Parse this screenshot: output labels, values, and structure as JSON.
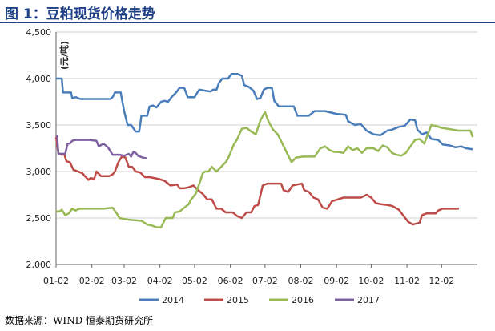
{
  "header": {
    "title": "图 1：豆粕现货价格走势"
  },
  "footer": {
    "source": "数据来源：WIND 恒泰期货研究所"
  },
  "colors": {
    "title": "#1f3f86",
    "gridline": "#d0d0d0",
    "s2014": "#4a7ebb",
    "s2015": "#be4b48",
    "s2016": "#98b954",
    "s2017": "#7d60a0"
  },
  "chart_data": {
    "type": "line",
    "title": "",
    "xlabel": "",
    "ylabel": "(元/吨)",
    "xlim": [
      1,
      366
    ],
    "ylim": [
      2000,
      4500
    ],
    "yticks": [
      2000,
      2500,
      3000,
      3500,
      4000,
      4500
    ],
    "ytick_labels": [
      "2,000",
      "2,500",
      "3,000",
      "3,500",
      "4,000",
      "4,500"
    ],
    "xticks": [
      1,
      32,
      60,
      91,
      121,
      152,
      182,
      213,
      244,
      274,
      305,
      335
    ],
    "xtick_labels": [
      "01-02",
      "02-02",
      "03-02",
      "04-02",
      "05-02",
      "06-02",
      "07-02",
      "08-02",
      "09-02",
      "10-02",
      "11-02",
      "12-02"
    ],
    "grid": "horizontal",
    "legend_position": "bottom",
    "series": [
      {
        "name": "2014",
        "points": [
          [
            1,
            4000
          ],
          [
            6,
            4000
          ],
          [
            7,
            3850
          ],
          [
            14,
            3850
          ],
          [
            15,
            3790
          ],
          [
            18,
            3800
          ],
          [
            22,
            3780
          ],
          [
            48,
            3780
          ],
          [
            50,
            3800
          ],
          [
            52,
            3850
          ],
          [
            57,
            3850
          ],
          [
            60,
            3650
          ],
          [
            63,
            3500
          ],
          [
            66,
            3500
          ],
          [
            70,
            3430
          ],
          [
            73,
            3430
          ],
          [
            75,
            3600
          ],
          [
            80,
            3600
          ],
          [
            82,
            3700
          ],
          [
            85,
            3710
          ],
          [
            88,
            3690
          ],
          [
            92,
            3750
          ],
          [
            95,
            3760
          ],
          [
            98,
            3750
          ],
          [
            101,
            3800
          ],
          [
            105,
            3850
          ],
          [
            108,
            3900
          ],
          [
            112,
            3900
          ],
          [
            115,
            3800
          ],
          [
            121,
            3800
          ],
          [
            125,
            3880
          ],
          [
            130,
            3870
          ],
          [
            135,
            3860
          ],
          [
            137,
            3880
          ],
          [
            140,
            3880
          ],
          [
            142,
            3950
          ],
          [
            145,
            4000
          ],
          [
            150,
            4000
          ],
          [
            153,
            4050
          ],
          [
            158,
            4050
          ],
          [
            162,
            4030
          ],
          [
            164,
            3930
          ],
          [
            168,
            3910
          ],
          [
            172,
            3870
          ],
          [
            175,
            3780
          ],
          [
            178,
            3790
          ],
          [
            181,
            3880
          ],
          [
            184,
            3900
          ],
          [
            188,
            3900
          ],
          [
            190,
            3760
          ],
          [
            194,
            3700
          ],
          [
            207,
            3700
          ],
          [
            210,
            3600
          ],
          [
            220,
            3600
          ],
          [
            225,
            3650
          ],
          [
            234,
            3650
          ],
          [
            244,
            3620
          ],
          [
            252,
            3610
          ],
          [
            254,
            3540
          ],
          [
            260,
            3500
          ],
          [
            265,
            3510
          ],
          [
            270,
            3440
          ],
          [
            276,
            3400
          ],
          [
            282,
            3390
          ],
          [
            288,
            3440
          ],
          [
            292,
            3450
          ],
          [
            298,
            3480
          ],
          [
            303,
            3490
          ],
          [
            308,
            3560
          ],
          [
            312,
            3550
          ],
          [
            314,
            3450
          ],
          [
            318,
            3400
          ],
          [
            322,
            3420
          ],
          [
            326,
            3350
          ],
          [
            332,
            3340
          ],
          [
            336,
            3290
          ],
          [
            342,
            3280
          ],
          [
            347,
            3260
          ],
          [
            352,
            3270
          ],
          [
            356,
            3250
          ],
          [
            362,
            3240
          ]
        ]
      },
      {
        "name": "2015",
        "points": [
          [
            1,
            3370
          ],
          [
            3,
            3200
          ],
          [
            6,
            3180
          ],
          [
            8,
            3190
          ],
          [
            10,
            3110
          ],
          [
            13,
            3100
          ],
          [
            16,
            3020
          ],
          [
            20,
            3000
          ],
          [
            24,
            2980
          ],
          [
            26,
            2950
          ],
          [
            29,
            2910
          ],
          [
            31,
            2930
          ],
          [
            34,
            2920
          ],
          [
            36,
            3000
          ],
          [
            40,
            2950
          ],
          [
            47,
            2950
          ],
          [
            50,
            2970
          ],
          [
            52,
            3000
          ],
          [
            55,
            3100
          ],
          [
            58,
            3160
          ],
          [
            61,
            3150
          ],
          [
            64,
            3050
          ],
          [
            67,
            3050
          ],
          [
            70,
            3000
          ],
          [
            74,
            2990
          ],
          [
            78,
            2940
          ],
          [
            82,
            2940
          ],
          [
            86,
            2930
          ],
          [
            90,
            2920
          ],
          [
            95,
            2900
          ],
          [
            100,
            2850
          ],
          [
            106,
            2860
          ],
          [
            108,
            2820
          ],
          [
            112,
            2820
          ],
          [
            116,
            2830
          ],
          [
            120,
            2850
          ],
          [
            124,
            2800
          ],
          [
            128,
            2760
          ],
          [
            132,
            2700
          ],
          [
            136,
            2700
          ],
          [
            140,
            2600
          ],
          [
            144,
            2600
          ],
          [
            148,
            2560
          ],
          [
            154,
            2560
          ],
          [
            158,
            2520
          ],
          [
            162,
            2500
          ],
          [
            166,
            2560
          ],
          [
            170,
            2560
          ],
          [
            173,
            2630
          ],
          [
            176,
            2640
          ],
          [
            180,
            2850
          ],
          [
            184,
            2870
          ],
          [
            196,
            2870
          ],
          [
            198,
            2800
          ],
          [
            202,
            2780
          ],
          [
            206,
            2850
          ],
          [
            210,
            2860
          ],
          [
            214,
            2870
          ],
          [
            216,
            2800
          ],
          [
            220,
            2780
          ],
          [
            224,
            2720
          ],
          [
            228,
            2700
          ],
          [
            232,
            2610
          ],
          [
            236,
            2600
          ],
          [
            240,
            2680
          ],
          [
            245,
            2700
          ],
          [
            250,
            2720
          ],
          [
            265,
            2720
          ],
          [
            270,
            2750
          ],
          [
            274,
            2720
          ],
          [
            278,
            2660
          ],
          [
            282,
            2650
          ],
          [
            288,
            2640
          ],
          [
            292,
            2630
          ],
          [
            298,
            2590
          ],
          [
            301,
            2540
          ],
          [
            306,
            2460
          ],
          [
            310,
            2430
          ],
          [
            316,
            2450
          ],
          [
            318,
            2530
          ],
          [
            322,
            2550
          ],
          [
            330,
            2550
          ],
          [
            332,
            2580
          ],
          [
            336,
            2600
          ],
          [
            350,
            2600
          ]
        ]
      },
      {
        "name": "2016",
        "points": [
          [
            1,
            2570
          ],
          [
            4,
            2570
          ],
          [
            6,
            2590
          ],
          [
            9,
            2530
          ],
          [
            12,
            2550
          ],
          [
            15,
            2600
          ],
          [
            18,
            2580
          ],
          [
            21,
            2600
          ],
          [
            28,
            2600
          ],
          [
            35,
            2600
          ],
          [
            42,
            2600
          ],
          [
            50,
            2610
          ],
          [
            53,
            2560
          ],
          [
            56,
            2500
          ],
          [
            60,
            2490
          ],
          [
            65,
            2480
          ],
          [
            75,
            2470
          ],
          [
            80,
            2430
          ],
          [
            84,
            2420
          ],
          [
            88,
            2400
          ],
          [
            92,
            2400
          ],
          [
            96,
            2500
          ],
          [
            100,
            2500
          ],
          [
            102,
            2500
          ],
          [
            104,
            2560
          ],
          [
            108,
            2570
          ],
          [
            112,
            2610
          ],
          [
            116,
            2650
          ],
          [
            118,
            2700
          ],
          [
            122,
            2760
          ],
          [
            126,
            2900
          ],
          [
            128,
            2980
          ],
          [
            130,
            3000
          ],
          [
            133,
            3000
          ],
          [
            136,
            3050
          ],
          [
            140,
            3000
          ],
          [
            144,
            3050
          ],
          [
            148,
            3100
          ],
          [
            150,
            3140
          ],
          [
            152,
            3200
          ],
          [
            155,
            3290
          ],
          [
            158,
            3350
          ],
          [
            162,
            3460
          ],
          [
            166,
            3470
          ],
          [
            170,
            3430
          ],
          [
            174,
            3400
          ],
          [
            178,
            3550
          ],
          [
            182,
            3640
          ],
          [
            185,
            3540
          ],
          [
            189,
            3450
          ],
          [
            193,
            3400
          ],
          [
            197,
            3300
          ],
          [
            201,
            3200
          ],
          [
            205,
            3100
          ],
          [
            209,
            3150
          ],
          [
            215,
            3160
          ],
          [
            220,
            3160
          ],
          [
            225,
            3160
          ],
          [
            230,
            3250
          ],
          [
            234,
            3270
          ],
          [
            238,
            3230
          ],
          [
            242,
            3210
          ],
          [
            246,
            3210
          ],
          [
            250,
            3200
          ],
          [
            254,
            3270
          ],
          [
            258,
            3230
          ],
          [
            262,
            3250
          ],
          [
            266,
            3200
          ],
          [
            270,
            3250
          ],
          [
            276,
            3250
          ],
          [
            280,
            3220
          ],
          [
            284,
            3280
          ],
          [
            288,
            3260
          ],
          [
            292,
            3200
          ],
          [
            296,
            3180
          ],
          [
            300,
            3170
          ],
          [
            304,
            3200
          ],
          [
            308,
            3270
          ],
          [
            312,
            3340
          ],
          [
            316,
            3350
          ],
          [
            320,
            3300
          ],
          [
            324,
            3430
          ],
          [
            326,
            3500
          ],
          [
            330,
            3490
          ],
          [
            335,
            3470
          ],
          [
            340,
            3460
          ],
          [
            345,
            3450
          ],
          [
            350,
            3440
          ],
          [
            360,
            3440
          ],
          [
            362,
            3370
          ]
        ]
      },
      {
        "name": "2017",
        "points": [
          [
            1,
            3380
          ],
          [
            2,
            3380
          ],
          [
            3,
            3190
          ],
          [
            6,
            3190
          ],
          [
            9,
            3190
          ],
          [
            11,
            3300
          ],
          [
            13,
            3300
          ],
          [
            15,
            3330
          ],
          [
            18,
            3340
          ],
          [
            30,
            3340
          ],
          [
            36,
            3330
          ],
          [
            38,
            3270
          ],
          [
            42,
            3300
          ],
          [
            46,
            3260
          ],
          [
            50,
            3180
          ],
          [
            56,
            3180
          ],
          [
            60,
            3170
          ],
          [
            64,
            3190
          ],
          [
            66,
            3160
          ],
          [
            68,
            3210
          ],
          [
            70,
            3200
          ],
          [
            72,
            3170
          ],
          [
            76,
            3150
          ],
          [
            80,
            3140
          ]
        ]
      }
    ]
  }
}
